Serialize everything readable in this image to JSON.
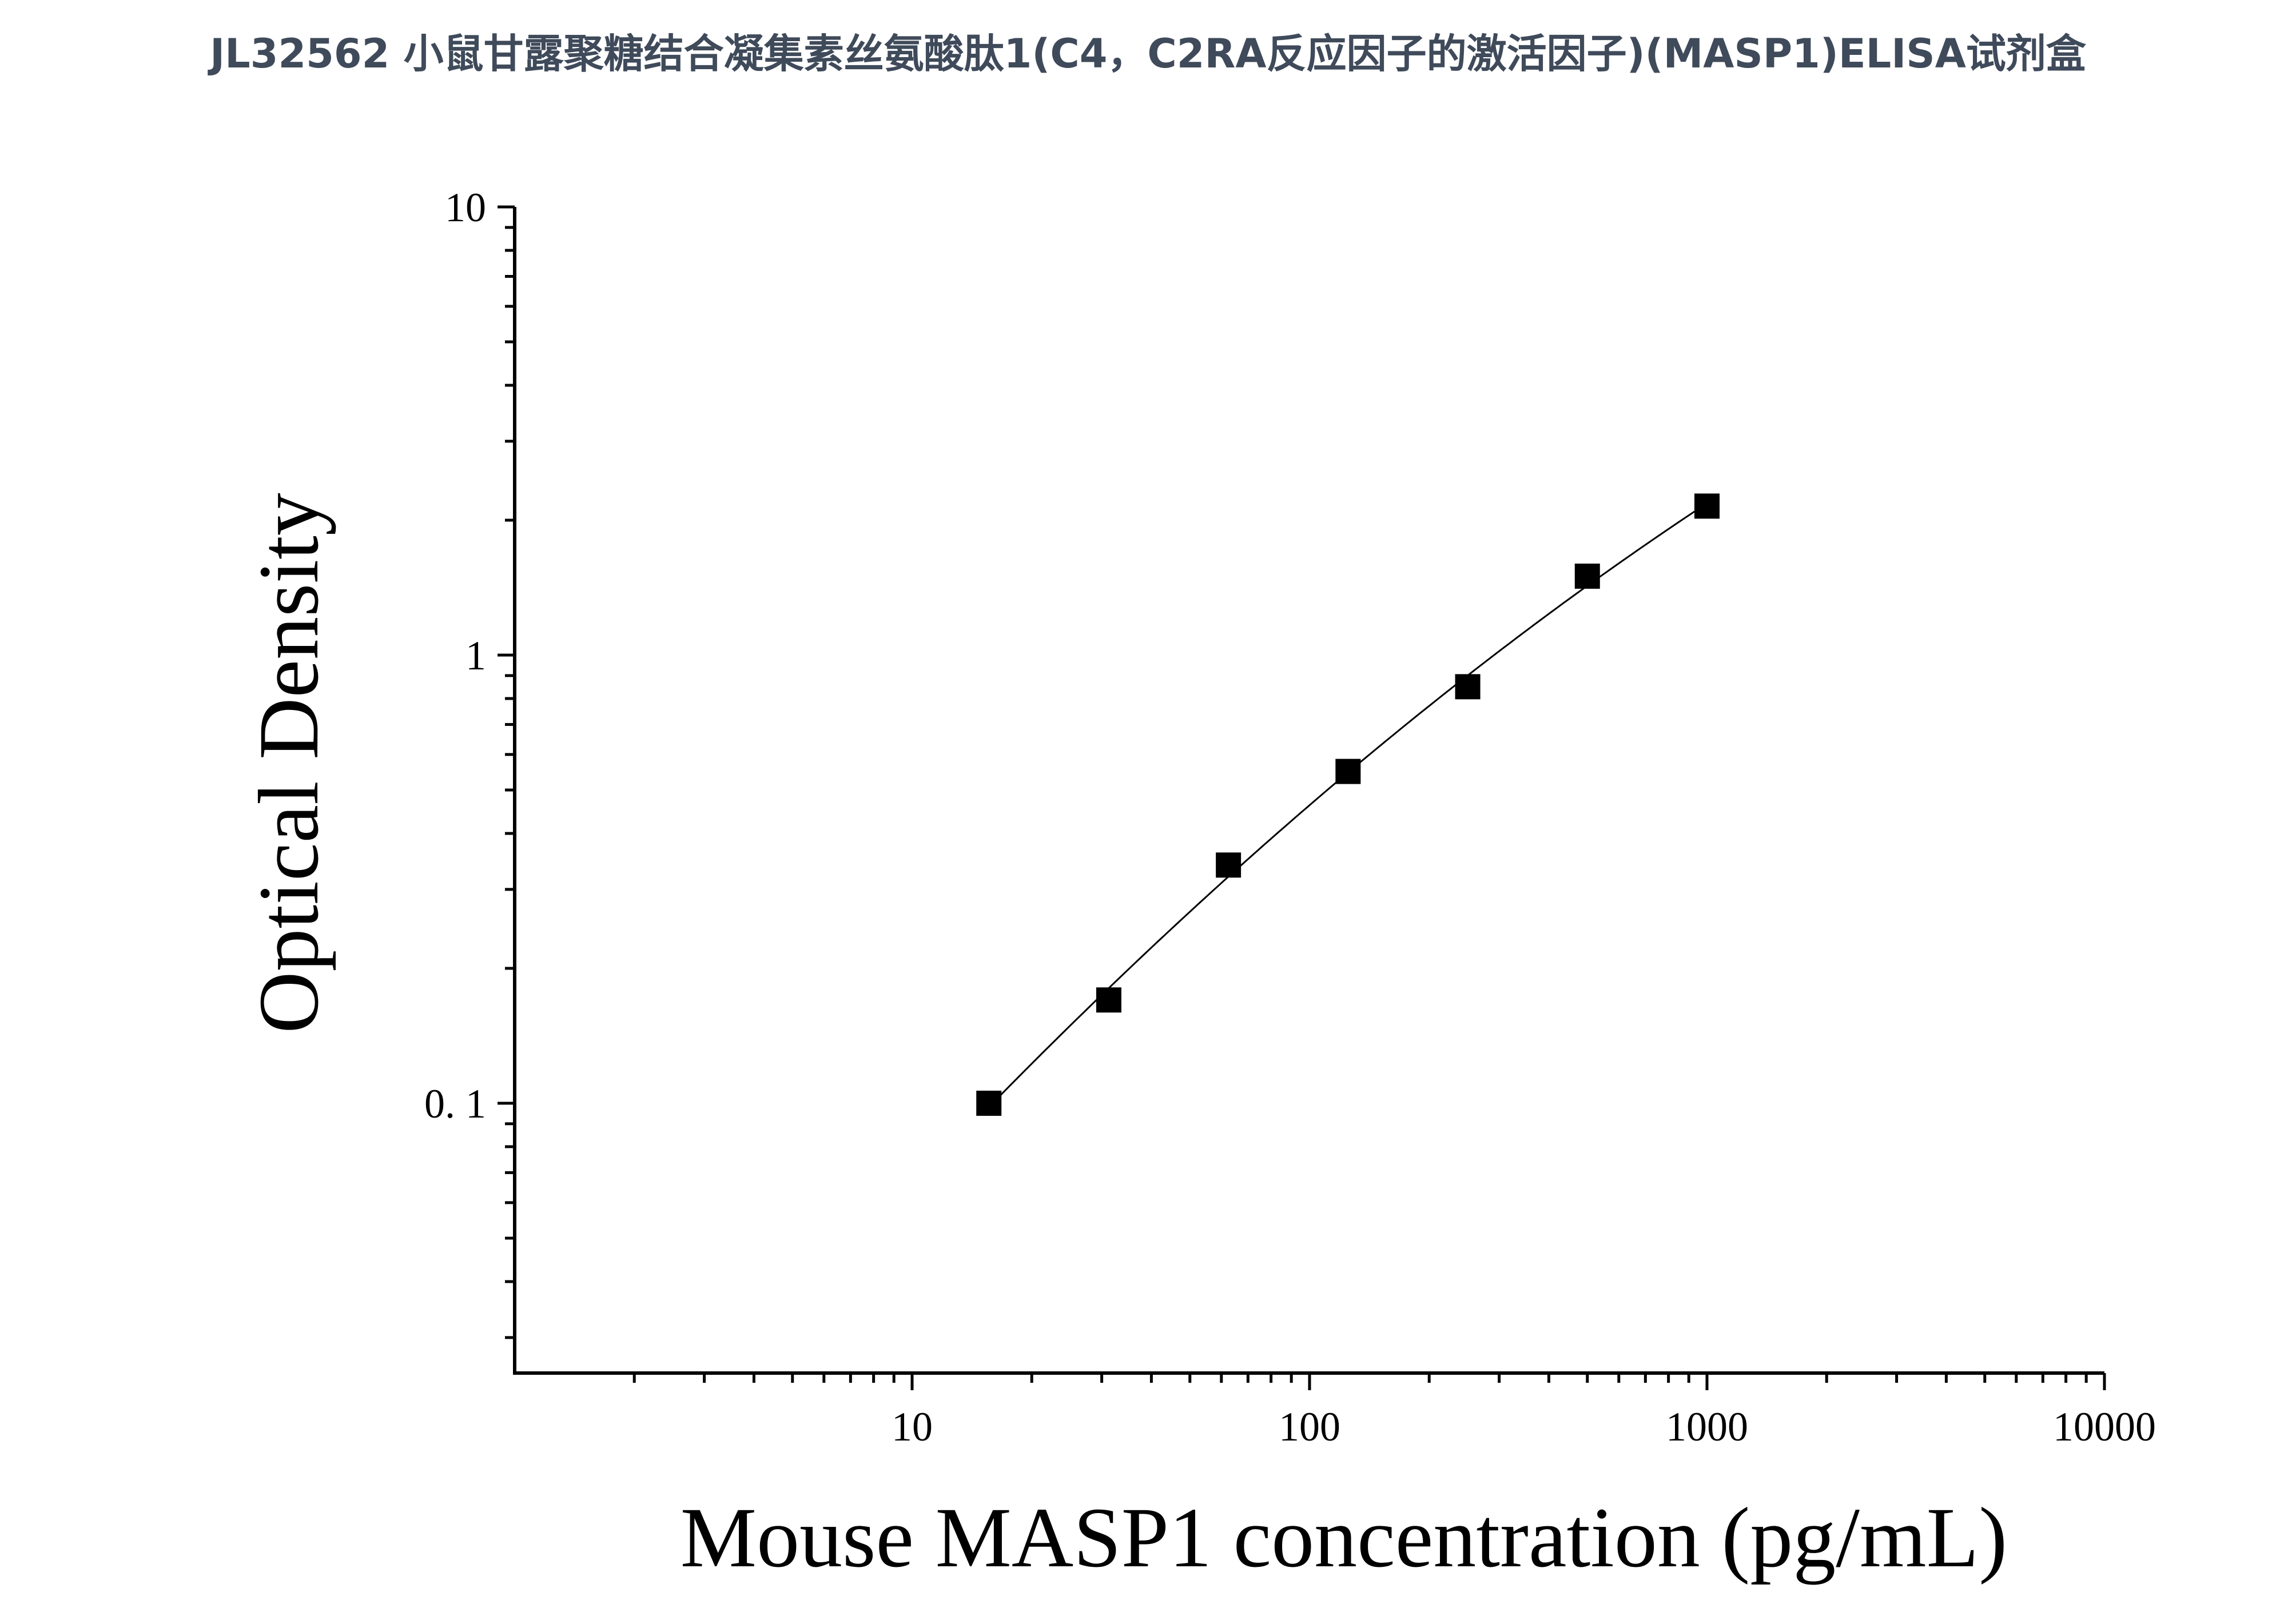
{
  "title": "JL32562 小鼠甘露聚糖结合凝集素丝氨酸肽1(C4，C2RA反应因子的激活因子)(MASP1)ELISA试剂盒",
  "chart_data": {
    "type": "scatter",
    "xlabel": "Mouse MASP1 concentration (pg/mL)",
    "ylabel": "Optical Density",
    "x_scale": "log",
    "y_scale": "log",
    "xlim": [
      1,
      10000
    ],
    "ylim": [
      0.025,
      10
    ],
    "x_ticks": [
      10,
      100,
      1000,
      10000
    ],
    "x_tick_labels": [
      "10",
      "100",
      "1000",
      "10000"
    ],
    "y_ticks": [
      0.1,
      1,
      10
    ],
    "y_tick_labels": [
      "0. 1",
      "1",
      "10"
    ],
    "grid": false,
    "legend": "none",
    "marker": "square",
    "line": "smooth fitted curve",
    "color": "#000000",
    "points": [
      {
        "x": 15.6,
        "y": 0.1
      },
      {
        "x": 31.25,
        "y": 0.17
      },
      {
        "x": 62.5,
        "y": 0.34
      },
      {
        "x": 125,
        "y": 0.55
      },
      {
        "x": 250,
        "y": 0.85
      },
      {
        "x": 500,
        "y": 1.5
      },
      {
        "x": 1000,
        "y": 2.15
      }
    ]
  }
}
